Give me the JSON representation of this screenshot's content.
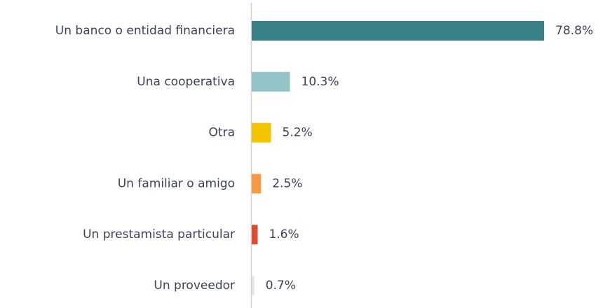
{
  "chart_data": {
    "type": "hbar",
    "categories": [
      "Un banco o entidad financiera",
      "Una cooperativa",
      "Otra",
      "Un familiar o amigo",
      "Un prestamista particular",
      "Un proveedor"
    ],
    "values": [
      78.8,
      10.3,
      5.2,
      2.5,
      1.6,
      0.7
    ],
    "value_labels": [
      "78.8%",
      "10.3%",
      "5.2%",
      "2.5%",
      "1.6%",
      "0.7%"
    ],
    "colors": [
      "#3b8189",
      "#93c4c8",
      "#f5c400",
      "#f79a43",
      "#e04b2d",
      "#e6e6e6"
    ]
  }
}
